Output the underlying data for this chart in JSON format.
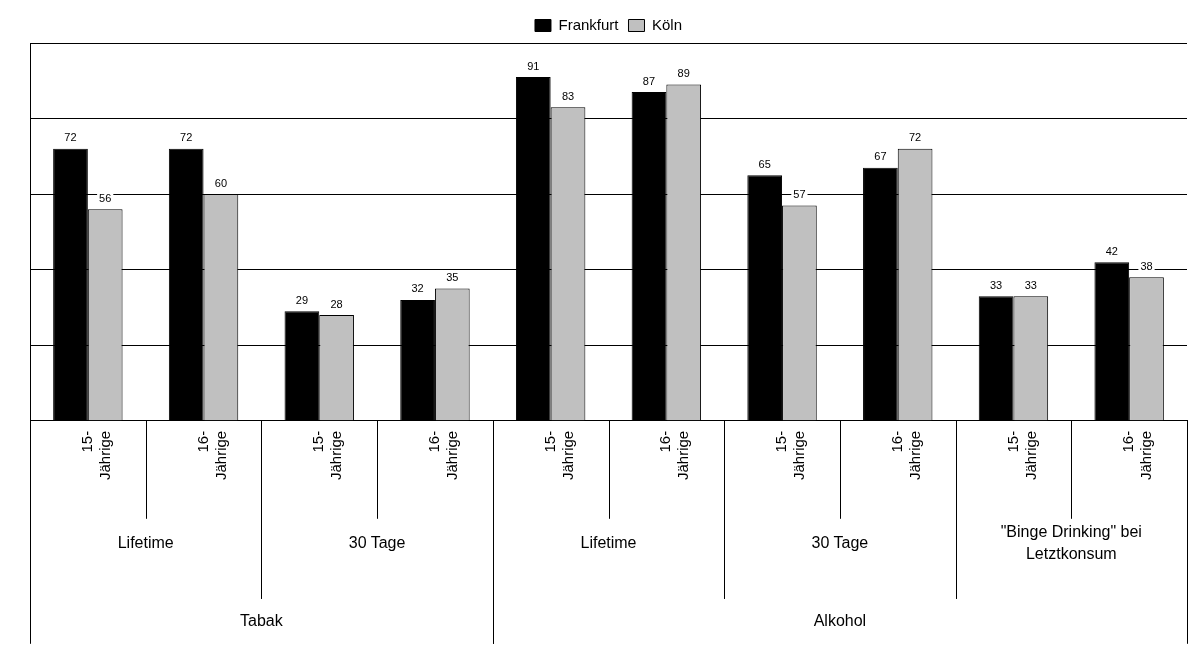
{
  "chart_data": {
    "type": "bar",
    "categories": [
      "15- Jährige",
      "16- Jährige",
      "15- Jährige",
      "16- Jährige",
      "15- Jährige",
      "16- Jährige",
      "15- Jährige",
      "16- Jährige",
      "15- Jährige",
      "16- Jährige"
    ],
    "series": [
      {
        "name": "Frankfurt",
        "color": "#000000",
        "values": [
          72,
          72,
          29,
          32,
          91,
          87,
          65,
          67,
          33,
          42
        ]
      },
      {
        "name": "Köln",
        "color": "#c0c0c0",
        "values": [
          56,
          60,
          28,
          35,
          83,
          89,
          57,
          72,
          33,
          38
        ]
      }
    ],
    "annotations": [
      "Lifetime",
      "30 Tage",
      "Lifetime",
      "30 Tage",
      "\"Binge Drinking\" bei Letztkonsum",
      "Tabak",
      "Alkohol"
    ],
    "ylim": [
      0,
      100
    ],
    "yticks": [
      0,
      20,
      40,
      60,
      80,
      100
    ],
    "grid": "y",
    "legend": "top",
    "tick_labels": "x",
    "data_labels": true
  }
}
